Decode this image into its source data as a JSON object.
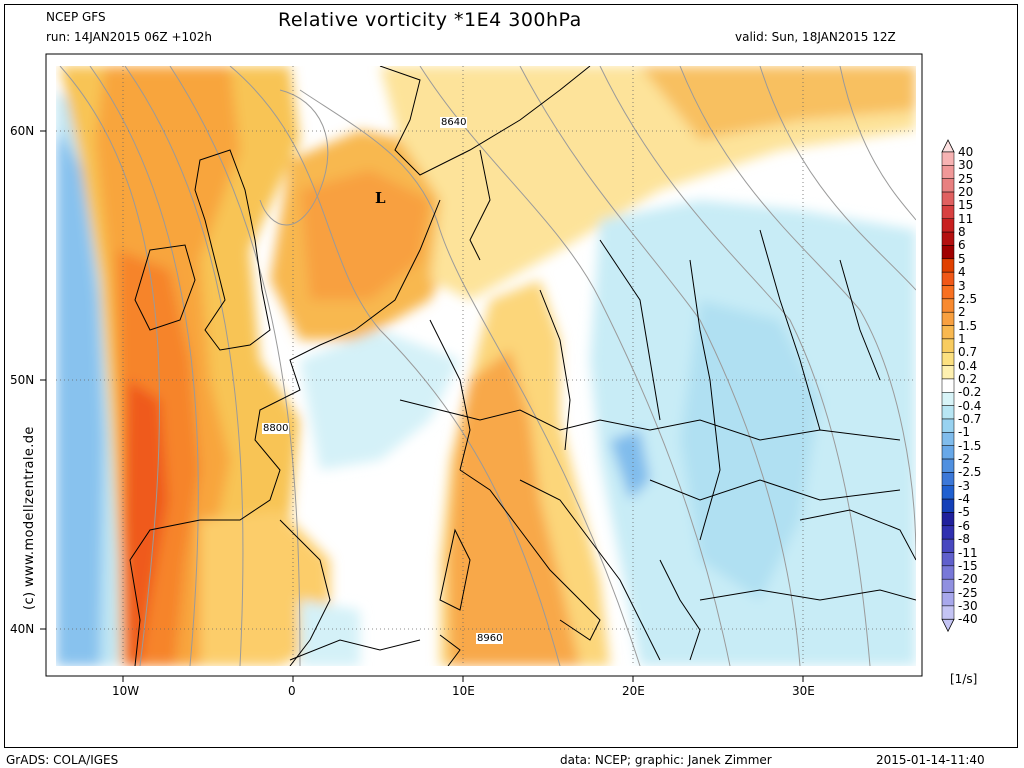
{
  "header": {
    "model": "NCEP GFS",
    "run": "run: 14JAN2015 06Z +102h",
    "title": "Relative vorticity *1E4 300hPa",
    "valid": "valid: Sun, 18JAN2015 12Z"
  },
  "map": {
    "lat_labels": [
      "60N",
      "50N",
      "40N"
    ],
    "lon_labels": [
      "10W",
      "0",
      "10E",
      "20E",
      "30E"
    ],
    "contour_labels": [
      "8640",
      "8800",
      "8960"
    ],
    "low_marker": "L"
  },
  "colorbar": {
    "levels": [
      "40",
      "30",
      "25",
      "20",
      "15",
      "11",
      "8",
      "6",
      "5",
      "4",
      "3",
      "2.5",
      "2",
      "1.5",
      "1",
      "0.7",
      "0.4",
      "0.2",
      "-0.2",
      "-0.4",
      "-0.7",
      "-1",
      "-1.5",
      "-2",
      "-2.5",
      "-3",
      "-4",
      "-5",
      "-6",
      "-8",
      "-11",
      "-15",
      "-20",
      "-25",
      "-30",
      "-40"
    ],
    "colors": [
      "#fde0e0",
      "#f7b3b3",
      "#f09898",
      "#e88080",
      "#e06060",
      "#d84040",
      "#c82020",
      "#b41010",
      "#a00000",
      "#e04000",
      "#f05818",
      "#f87020",
      "#f88a30",
      "#f8a040",
      "#f8b850",
      "#f8cc60",
      "#fce080",
      "#fef0b0",
      "#ffffff",
      "#d8f4f8",
      "#b8e6f4",
      "#98d2f0",
      "#80bcec",
      "#68a8e8",
      "#5090e0",
      "#3c78d8",
      "#2060d0",
      "#1440b8",
      "#20209c",
      "#3030b0",
      "#4848c0",
      "#6060cc",
      "#7878d8",
      "#9090e0",
      "#a8a8ec",
      "#c4c4f4"
    ],
    "unit": "[1/s]"
  },
  "watermark": "(c)  www.modellzentrale.de",
  "footer": {
    "left": "GrADS: COLA/IGES",
    "credit": "data: NCEP; graphic: Janek Zimmer",
    "timestamp": "2015-01-14-11:40"
  }
}
